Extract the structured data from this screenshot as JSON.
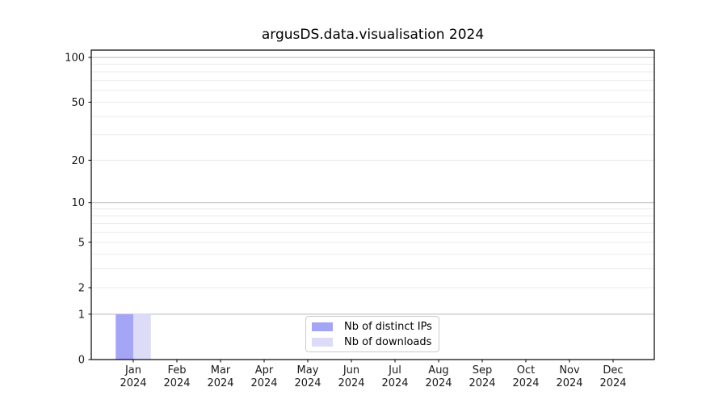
{
  "title": "argusDS.data.visualisation 2024",
  "legend": {
    "items": [
      {
        "label": "Nb of distinct IPs",
        "color": "#a5a5f6"
      },
      {
        "label": "Nb of downloads",
        "color": "#dcdcf9"
      }
    ],
    "position": "lower center"
  },
  "chart_data": {
    "type": "bar",
    "title": "argusDS.data.visualisation 2024",
    "categories": [
      "Jan",
      "Feb",
      "Mar",
      "Apr",
      "May",
      "Jun",
      "Jul",
      "Aug",
      "Sep",
      "Oct",
      "Nov",
      "Dec"
    ],
    "x_tick_second_line": "2024",
    "series": [
      {
        "name": "Nb of distinct IPs",
        "color": "#a5a5f6",
        "values": [
          1,
          0,
          0,
          0,
          0,
          0,
          0,
          0,
          0,
          0,
          0,
          0
        ]
      },
      {
        "name": "Nb of downloads",
        "color": "#dcdcf9",
        "values": [
          1,
          0,
          0,
          0,
          0,
          0,
          0,
          0,
          0,
          0,
          0,
          0
        ]
      }
    ],
    "yscale": "log(1+y)",
    "ylim": [
      0,
      112
    ],
    "yticks": [
      0,
      1,
      2,
      5,
      10,
      20,
      50,
      100
    ],
    "major_gridlines": [
      1,
      10,
      100
    ],
    "minor_gridlines": [
      2,
      3,
      4,
      5,
      6,
      7,
      8,
      9,
      20,
      30,
      40,
      50,
      60,
      70,
      80,
      90
    ],
    "grid": "horizontal",
    "legend_position": "lower center",
    "colors": {
      "axis": "#000000",
      "major_grid": "#b9b9b9",
      "minor_grid": "#ebebeb",
      "tick_label": "#1a1a1a"
    }
  }
}
